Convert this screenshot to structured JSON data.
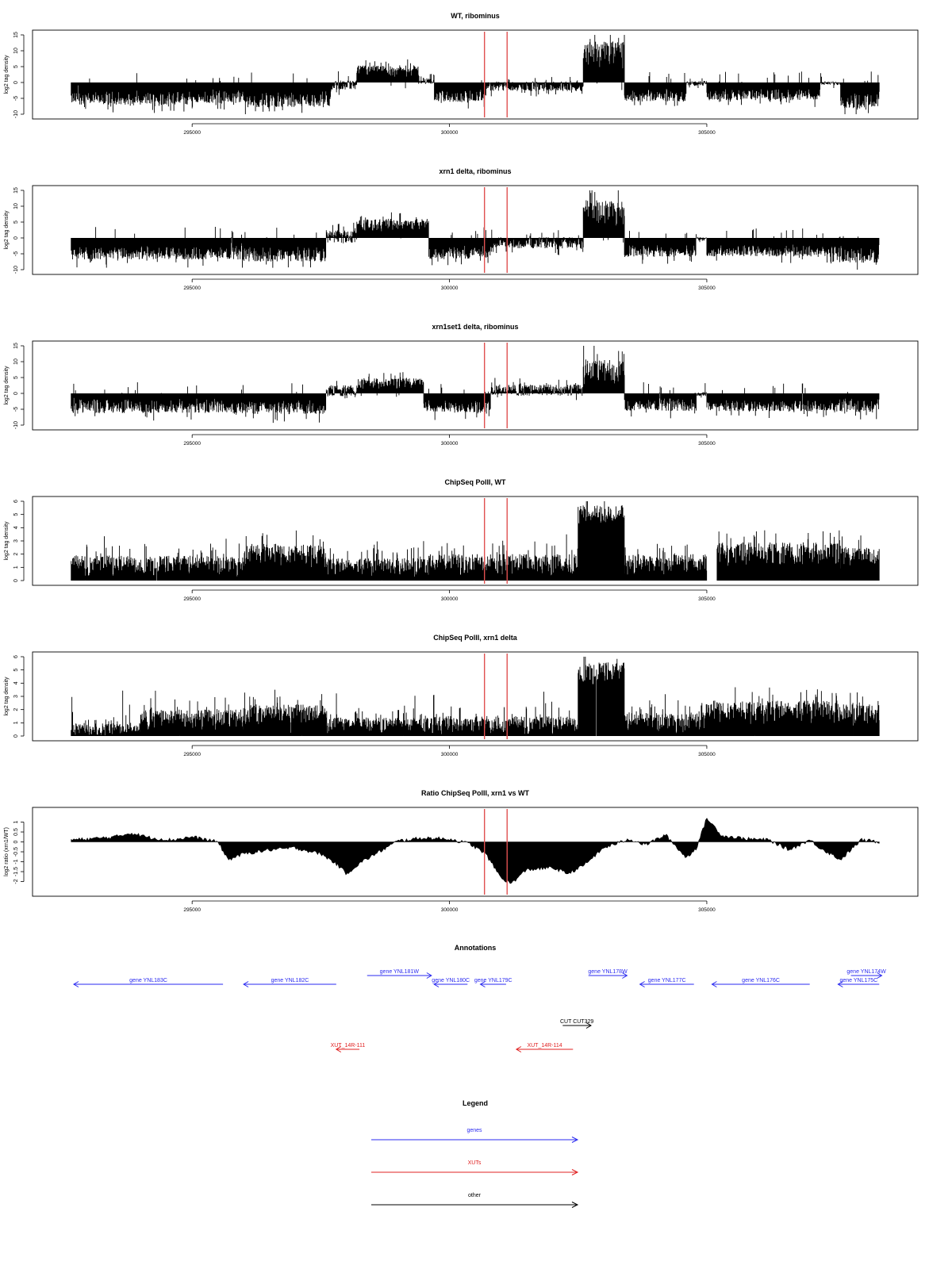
{
  "chart_data": [
    {
      "type": "bar",
      "title": "WT, ribominus",
      "ylabel": "log2 tag density",
      "ylim": [
        -10,
        15
      ],
      "yticks": [
        -10,
        -5,
        0,
        5,
        10,
        15
      ],
      "xlim": [
        292500,
        308500
      ],
      "xticks": [
        295000,
        300000,
        305000
      ],
      "xtick_labels": [
        "295000",
        "300000",
        "305000"
      ],
      "series_color": "#000000",
      "markers": {
        "x": [
          300680,
          301120
        ],
        "color": "#e05050"
      },
      "segments": [
        {
          "x0": 292650,
          "x1": 295000,
          "level": -4.8,
          "noise": 2.2
        },
        {
          "x0": 295000,
          "x1": 296000,
          "level": -4.3,
          "noise": 2.2
        },
        {
          "x0": 296000,
          "x1": 297700,
          "level": -5.2,
          "noise": 2.6
        },
        {
          "x0": 297700,
          "x1": 298200,
          "level": -0.8,
          "noise": 1.5
        },
        {
          "x0": 298200,
          "x1": 299400,
          "level": 3.6,
          "noise": 1.8
        },
        {
          "x0": 299400,
          "x1": 299700,
          "level": 0.5,
          "noise": 1.0
        },
        {
          "x0": 299700,
          "x1": 300700,
          "level": -4.2,
          "noise": 2.0
        },
        {
          "x0": 300700,
          "x1": 302600,
          "level": -1.2,
          "noise": 1.5
        },
        {
          "x0": 302600,
          "x1": 303400,
          "level": 8.5,
          "noise": 4.5
        },
        {
          "x0": 303400,
          "x1": 304600,
          "level": -4.0,
          "noise": 2.0
        },
        {
          "x0": 304600,
          "x1": 305000,
          "level": -0.3,
          "noise": 0.8
        },
        {
          "x0": 305000,
          "x1": 307200,
          "level": -3.8,
          "noise": 1.8
        },
        {
          "x0": 307200,
          "x1": 307600,
          "level": -0.2,
          "noise": 0.6
        },
        {
          "x0": 307600,
          "x1": 308350,
          "level": -5.5,
          "noise": 2.6
        }
      ]
    },
    {
      "type": "bar",
      "title": "xrn1 delta, ribominus",
      "ylabel": "log2 tag density",
      "ylim": [
        -10,
        15
      ],
      "yticks": [
        -10,
        -5,
        0,
        5,
        10,
        15
      ],
      "xlim": [
        292500,
        308500
      ],
      "xticks": [
        295000,
        300000,
        305000
      ],
      "xtick_labels": [
        "295000",
        "300000",
        "305000"
      ],
      "series_color": "#000000",
      "markers": {
        "x": [
          300680,
          301120
        ],
        "color": "#e05050"
      },
      "segments": [
        {
          "x0": 292650,
          "x1": 296000,
          "level": -4.6,
          "noise": 2.2
        },
        {
          "x0": 296000,
          "x1": 297600,
          "level": -5.0,
          "noise": 2.4
        },
        {
          "x0": 297600,
          "x1": 298200,
          "level": 0.5,
          "noise": 2.0
        },
        {
          "x0": 298200,
          "x1": 299600,
          "level": 4.0,
          "noise": 2.0
        },
        {
          "x0": 299600,
          "x1": 300800,
          "level": -4.5,
          "noise": 2.2
        },
        {
          "x0": 300800,
          "x1": 302600,
          "level": -1.5,
          "noise": 1.8
        },
        {
          "x0": 302600,
          "x1": 303400,
          "level": 8.0,
          "noise": 4.2
        },
        {
          "x0": 303400,
          "x1": 304800,
          "level": -4.0,
          "noise": 2.0
        },
        {
          "x0": 304800,
          "x1": 305000,
          "level": -0.2,
          "noise": 0.6
        },
        {
          "x0": 305000,
          "x1": 307400,
          "level": -4.0,
          "noise": 1.8
        },
        {
          "x0": 307400,
          "x1": 308350,
          "level": -5.0,
          "noise": 2.8
        }
      ]
    },
    {
      "type": "bar",
      "title": "xrn1set1 delta, ribominus",
      "ylabel": "log2 tag density",
      "ylim": [
        -10,
        15
      ],
      "yticks": [
        -10,
        -5,
        0,
        5,
        10,
        15
      ],
      "xlim": [
        292500,
        308500
      ],
      "xticks": [
        295000,
        300000,
        305000
      ],
      "xtick_labels": [
        "295000",
        "300000",
        "305000"
      ],
      "series_color": "#000000",
      "markers": {
        "x": [
          300680,
          301120
        ],
        "color": "#e05050"
      },
      "segments": [
        {
          "x0": 292650,
          "x1": 296000,
          "level": -3.8,
          "noise": 2.4
        },
        {
          "x0": 296000,
          "x1": 297600,
          "level": -4.2,
          "noise": 2.4
        },
        {
          "x0": 297600,
          "x1": 298200,
          "level": 0.8,
          "noise": 1.8
        },
        {
          "x0": 298200,
          "x1": 299500,
          "level": 3.0,
          "noise": 1.8
        },
        {
          "x0": 299500,
          "x1": 300800,
          "level": -4.0,
          "noise": 2.0
        },
        {
          "x0": 300800,
          "x1": 302600,
          "level": 1.0,
          "noise": 1.8
        },
        {
          "x0": 302600,
          "x1": 303400,
          "level": 6.5,
          "noise": 4.0
        },
        {
          "x0": 303400,
          "x1": 304800,
          "level": -3.5,
          "noise": 2.0
        },
        {
          "x0": 304800,
          "x1": 305000,
          "level": -0.2,
          "noise": 0.6
        },
        {
          "x0": 305000,
          "x1": 307400,
          "level": -3.8,
          "noise": 1.8
        },
        {
          "x0": 307400,
          "x1": 308350,
          "level": -3.5,
          "noise": 2.5
        }
      ]
    },
    {
      "type": "bar",
      "title": "ChipSeq PolII, WT",
      "ylabel": "log2 tag density",
      "ylim": [
        0,
        6
      ],
      "yticks": [
        0,
        1,
        2,
        3,
        4,
        5,
        6
      ],
      "xlim": [
        292500,
        308500
      ],
      "xticks": [
        295000,
        300000,
        305000
      ],
      "xtick_labels": [
        "295000",
        "300000",
        "305000"
      ],
      "series_color": "#000000",
      "markers": {
        "x": [
          300680,
          301120
        ],
        "color": "#e05050"
      },
      "segments": [
        {
          "x0": 292650,
          "x1": 296000,
          "level": 1.1,
          "noise": 0.8
        },
        {
          "x0": 296000,
          "x1": 297600,
          "level": 1.9,
          "noise": 0.9
        },
        {
          "x0": 297600,
          "x1": 299600,
          "level": 1.0,
          "noise": 0.7
        },
        {
          "x0": 299600,
          "x1": 302500,
          "level": 1.2,
          "noise": 0.8
        },
        {
          "x0": 302500,
          "x1": 303400,
          "level": 4.9,
          "noise": 0.8
        },
        {
          "x0": 303400,
          "x1": 305000,
          "level": 1.2,
          "noise": 0.8
        },
        {
          "x0": 305200,
          "x1": 307600,
          "level": 2.0,
          "noise": 0.9
        },
        {
          "x0": 307600,
          "x1": 308350,
          "level": 1.7,
          "noise": 0.8
        }
      ]
    },
    {
      "type": "bar",
      "title": "ChipSeq PolII, xrn1 delta",
      "ylabel": "log2 tag density",
      "ylim": [
        0,
        6
      ],
      "yticks": [
        0,
        1,
        2,
        3,
        4,
        5,
        6
      ],
      "xlim": [
        292500,
        308500
      ],
      "xticks": [
        295000,
        300000,
        305000
      ],
      "xtick_labels": [
        "295000",
        "300000",
        "305000"
      ],
      "series_color": "#000000",
      "markers": {
        "x": [
          300680,
          301120
        ],
        "color": "#e05050"
      },
      "segments": [
        {
          "x0": 292650,
          "x1": 294000,
          "level": 0.5,
          "noise": 0.5
        },
        {
          "x0": 294000,
          "x1": 296000,
          "level": 1.2,
          "noise": 0.8
        },
        {
          "x0": 296000,
          "x1": 297600,
          "level": 1.6,
          "noise": 0.8
        },
        {
          "x0": 297600,
          "x1": 299600,
          "level": 0.8,
          "noise": 0.6
        },
        {
          "x0": 299600,
          "x1": 302500,
          "level": 0.8,
          "noise": 0.7
        },
        {
          "x0": 302500,
          "x1": 303400,
          "level": 4.7,
          "noise": 0.9
        },
        {
          "x0": 303400,
          "x1": 305000,
          "level": 1.0,
          "noise": 0.8
        },
        {
          "x0": 305000,
          "x1": 307600,
          "level": 1.8,
          "noise": 0.9
        },
        {
          "x0": 307600,
          "x1": 308350,
          "level": 1.6,
          "noise": 0.8
        }
      ]
    },
    {
      "type": "area",
      "title": "Ratio ChipSeq PolII, xrn1 vs WT",
      "ylabel": "log2 ratio (xrn1/WT)",
      "ylim": [
        -2.5,
        1.5
      ],
      "yticks": [
        -2,
        -1.5,
        -1,
        -0.5,
        0,
        0.5,
        1
      ],
      "ytick_labels": [
        "-2",
        "-1.5",
        "-1",
        "-0.5",
        "0",
        "0.5",
        "1"
      ],
      "xlim": [
        292500,
        308500
      ],
      "xticks": [
        295000,
        300000,
        305000
      ],
      "xtick_labels": [
        "295000",
        "300000",
        "305000"
      ],
      "series_color": "#000000",
      "markers": {
        "x": [
          300680,
          301120
        ],
        "color": "#e05050"
      },
      "x": [
        292650,
        293000,
        293500,
        293800,
        294200,
        294600,
        295000,
        295200,
        295500,
        295700,
        296000,
        296500,
        297000,
        297500,
        297800,
        298000,
        298300,
        298700,
        299000,
        299500,
        300000,
        300400,
        300700,
        301000,
        301200,
        301500,
        302000,
        302300,
        302600,
        303000,
        303500,
        303800,
        304200,
        304600,
        304800,
        305000,
        305300,
        305800,
        306200,
        306600,
        307000,
        307200,
        307600,
        308000,
        308350
      ],
      "y": [
        0.1,
        0.15,
        0.25,
        0.45,
        0.2,
        0.1,
        0.25,
        0.15,
        0.0,
        -0.9,
        -0.6,
        -0.4,
        -0.3,
        -0.6,
        -1.1,
        -1.6,
        -1.0,
        -0.4,
        0.05,
        0.2,
        0.15,
        -0.1,
        -0.6,
        -1.8,
        -2.1,
        -1.4,
        -1.3,
        -1.6,
        -1.2,
        -0.3,
        0.15,
        -0.15,
        0.35,
        -0.8,
        -0.3,
        1.2,
        0.3,
        0.15,
        0.1,
        -0.4,
        0.1,
        -0.3,
        -0.9,
        0.1,
        0.0
      ]
    }
  ],
  "annotations": {
    "title": "Annotations",
    "xlim": [
      292500,
      308500
    ],
    "features": [
      {
        "label": "gene YNL183C",
        "x0": 292700,
        "x1": 295600,
        "strand": "-",
        "row": 2,
        "color": "#2a2af0"
      },
      {
        "label": "gene YNL182C",
        "x0": 296000,
        "x1": 297800,
        "strand": "-",
        "row": 2,
        "color": "#2a2af0"
      },
      {
        "label": "gene YNL181W",
        "x0": 298400,
        "x1": 299650,
        "strand": "+",
        "row": 1,
        "color": "#2a2af0"
      },
      {
        "label": "gene YNL180C",
        "x0": 299700,
        "x1": 300350,
        "strand": "-",
        "row": 2,
        "color": "#2a2af0"
      },
      {
        "label": "gene YNL179C",
        "x0": 300600,
        "x1": 301100,
        "strand": "-",
        "row": 2,
        "color": "#2a2af0"
      },
      {
        "label": "gene YNL178W",
        "x0": 302700,
        "x1": 303450,
        "strand": "+",
        "row": 1,
        "color": "#2a2af0"
      },
      {
        "label": "gene YNL177C",
        "x0": 303700,
        "x1": 304750,
        "strand": "-",
        "row": 2,
        "color": "#2a2af0"
      },
      {
        "label": "gene YNL176C",
        "x0": 305100,
        "x1": 307000,
        "strand": "-",
        "row": 2,
        "color": "#2a2af0"
      },
      {
        "label": "gene YNL175C",
        "x0": 307550,
        "x1": 308350,
        "strand": "-",
        "row": 2,
        "color": "#2a2af0"
      },
      {
        "label": "gene YNL174W",
        "x0": 307800,
        "x1": 308400,
        "strand": "+",
        "row": 1,
        "color": "#2a2af0"
      },
      {
        "label": "CUT CUT329",
        "x0": 302200,
        "x1": 302750,
        "strand": "+",
        "row": 4,
        "color": "#000000"
      },
      {
        "label": "XUT_14R-111",
        "x0": 297800,
        "x1": 298250,
        "strand": "-",
        "row": 5,
        "color": "#e02020"
      },
      {
        "label": "XUT_14R-114",
        "x0": 301300,
        "x1": 302400,
        "strand": "-",
        "row": 5,
        "color": "#e02020"
      }
    ]
  },
  "legend": {
    "title": "Legend",
    "items": [
      {
        "label": "genes",
        "color": "#2a2af0"
      },
      {
        "label": "XUTs",
        "color": "#e02020"
      },
      {
        "label": "other",
        "color": "#000000"
      }
    ]
  }
}
